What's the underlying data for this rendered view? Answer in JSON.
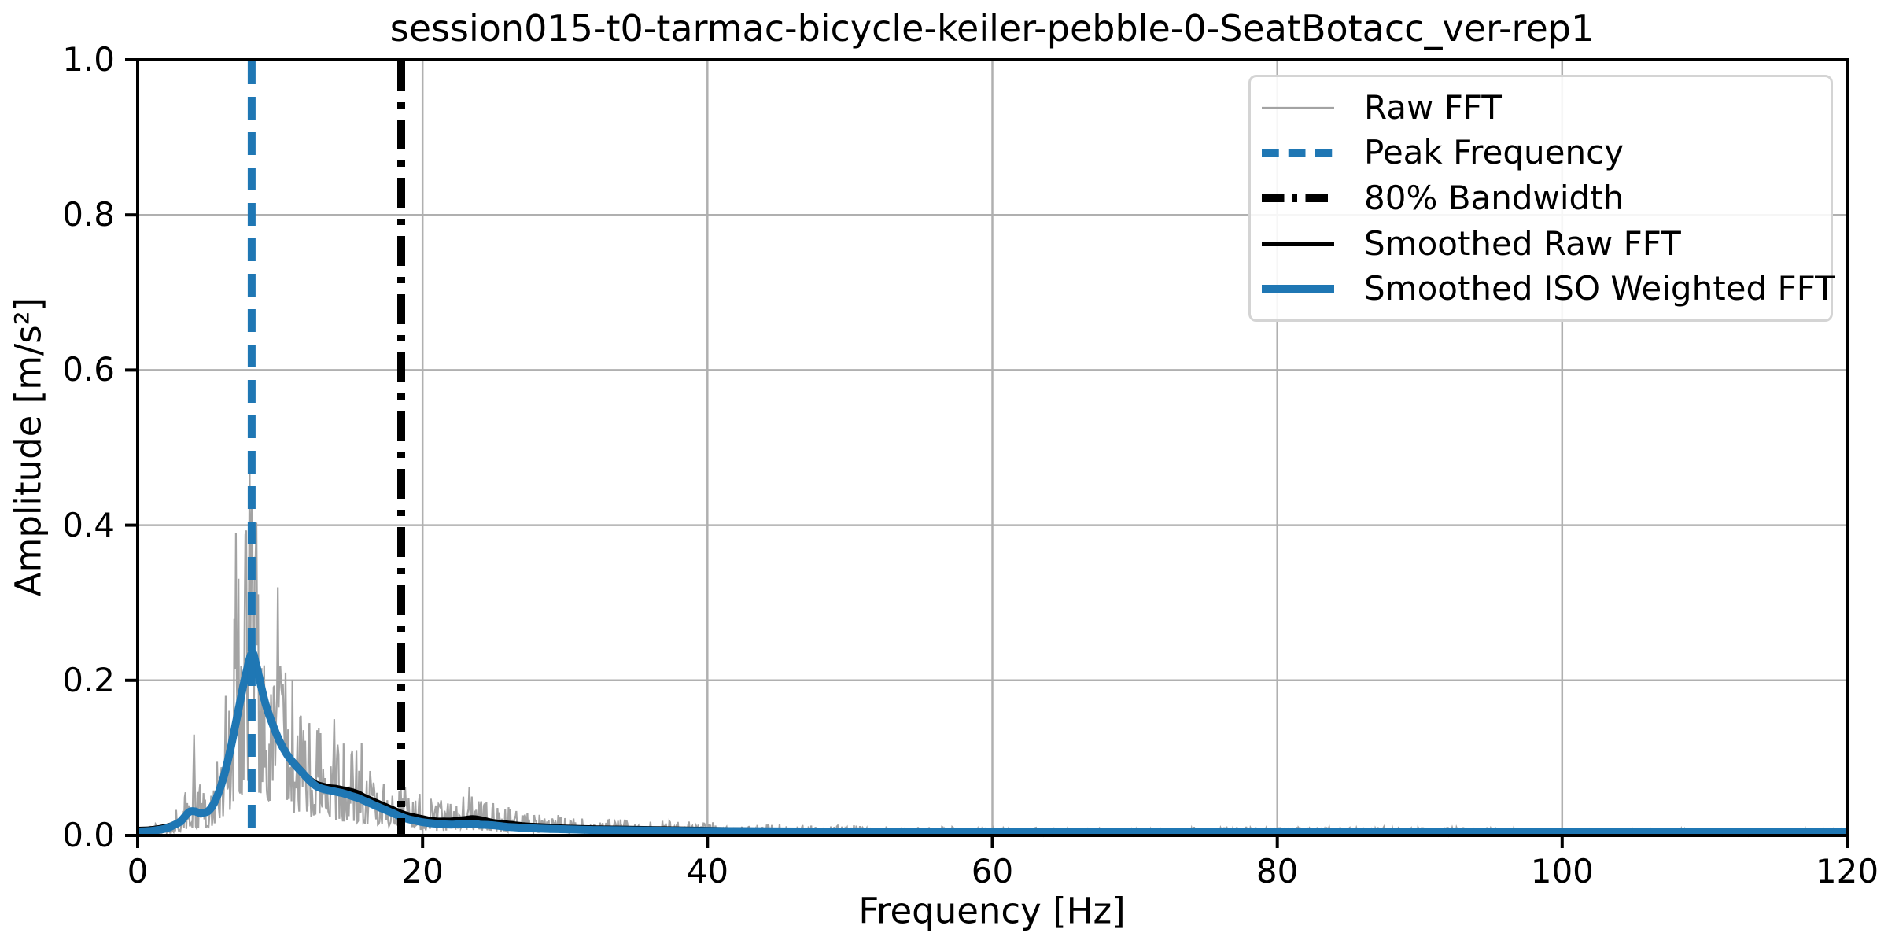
{
  "figure": {
    "background": "#ffffff"
  },
  "chart_data": {
    "type": "line",
    "title": "session015-t0-tarmac-bicycle-keiler-pebble-0-SeatBotacc_ver-rep1",
    "xlabel": "Frequency [Hz]",
    "ylabel": "Amplitude [m/s²]",
    "xlim": [
      0,
      120
    ],
    "ylim": [
      0,
      1.0
    ],
    "xticks": [
      0,
      20,
      40,
      60,
      80,
      100,
      120
    ],
    "yticks": [
      "0.0",
      "0.2",
      "0.4",
      "0.6",
      "0.8",
      "1.0"
    ],
    "grid": true,
    "legend_position": "upper right",
    "style": {
      "grid_color": "#b0b0b0",
      "spine_color": "#000000",
      "tick_color": "#000000",
      "text_color": "#000000",
      "legend_border_color": "#d4d4d4"
    },
    "annotations": {
      "peak_frequency_hz": 8.0,
      "bandwidth_80_hz": 18.5
    },
    "series": [
      {
        "name": "Raw FFT",
        "type": "noisy",
        "color": "#a3a3a3",
        "width": 2.2,
        "seed": 20150,
        "df": 0.06,
        "noise": {
          "floor": 0.0015,
          "min_mult": 0.3,
          "range_mult": 2.0,
          "power": 2.0
        },
        "base": [
          [
            0,
            0.005
          ],
          [
            1,
            0.006
          ],
          [
            2,
            0.009
          ],
          [
            2.5,
            0.012
          ],
          [
            3,
            0.018
          ],
          [
            3.6,
            0.03
          ],
          [
            4,
            0.032
          ],
          [
            4.5,
            0.028
          ],
          [
            5,
            0.032
          ],
          [
            5.5,
            0.045
          ],
          [
            6,
            0.07
          ],
          [
            6.5,
            0.1
          ],
          [
            7,
            0.15
          ],
          [
            7.5,
            0.19
          ],
          [
            8,
            0.215
          ],
          [
            8.5,
            0.185
          ],
          [
            9,
            0.16
          ],
          [
            9.5,
            0.14
          ],
          [
            10,
            0.12
          ],
          [
            10.5,
            0.105
          ],
          [
            11,
            0.095
          ],
          [
            11.5,
            0.085
          ],
          [
            12,
            0.075
          ],
          [
            12.5,
            0.068
          ],
          [
            13,
            0.065
          ],
          [
            13.5,
            0.063
          ],
          [
            14,
            0.062
          ],
          [
            14.5,
            0.06
          ],
          [
            15,
            0.057
          ],
          [
            15.5,
            0.054
          ],
          [
            16,
            0.05
          ],
          [
            16.5,
            0.046
          ],
          [
            17,
            0.042
          ],
          [
            17.5,
            0.038
          ],
          [
            18,
            0.034
          ],
          [
            18.5,
            0.03
          ],
          [
            19,
            0.027
          ],
          [
            19.5,
            0.025
          ],
          [
            20,
            0.023
          ],
          [
            21,
            0.02
          ],
          [
            22,
            0.02
          ],
          [
            22.5,
            0.021
          ],
          [
            23,
            0.023
          ],
          [
            23.5,
            0.024
          ],
          [
            24,
            0.022
          ],
          [
            24.5,
            0.02
          ],
          [
            25,
            0.018
          ],
          [
            26,
            0.016
          ],
          [
            27,
            0.014
          ],
          [
            28,
            0.013
          ],
          [
            29,
            0.012
          ],
          [
            30,
            0.011
          ],
          [
            32,
            0.01
          ],
          [
            34,
            0.009
          ],
          [
            36,
            0.0085
          ],
          [
            38,
            0.008
          ],
          [
            40,
            0.0075
          ],
          [
            44,
            0.0065
          ],
          [
            48,
            0.006
          ],
          [
            52,
            0.0055
          ],
          [
            56,
            0.005
          ],
          [
            60,
            0.0045
          ],
          [
            70,
            0.004
          ],
          [
            75,
            0.005
          ],
          [
            85,
            0.005
          ],
          [
            95,
            0.0045
          ],
          [
            100,
            0.004
          ],
          [
            110,
            0.0038
          ],
          [
            120,
            0.0035
          ]
        ],
        "spikes": [
          [
            3.95,
            0.13
          ],
          [
            6.2,
            0.18
          ],
          [
            6.9,
            0.39
          ],
          [
            7.85,
            0.49
          ],
          [
            8.05,
            0.44
          ],
          [
            8.3,
            0.36
          ],
          [
            9.85,
            0.32
          ],
          [
            10.4,
            0.21
          ],
          [
            13.8,
            0.15
          ],
          [
            23.3,
            0.062
          ]
        ]
      },
      {
        "name": "Peak Frequency",
        "type": "vline",
        "x": 8.0,
        "color": "#1f77b4",
        "width": 10,
        "dash": "29 16"
      },
      {
        "name": "80% Bandwidth",
        "type": "vline",
        "x": 18.5,
        "color": "#000000",
        "width": 10,
        "dash": "38 14 8 14"
      },
      {
        "name": "Smoothed Raw FFT",
        "type": "smooth",
        "color": "#000000",
        "width": 6,
        "points": [
          [
            0,
            0.008
          ],
          [
            1,
            0.009
          ],
          [
            2,
            0.012
          ],
          [
            2.5,
            0.015
          ],
          [
            3,
            0.02
          ],
          [
            3.6,
            0.031
          ],
          [
            4,
            0.032
          ],
          [
            4.4,
            0.03
          ],
          [
            5,
            0.032
          ],
          [
            5.5,
            0.045
          ],
          [
            6,
            0.07
          ],
          [
            6.5,
            0.105
          ],
          [
            7,
            0.15
          ],
          [
            7.5,
            0.195
          ],
          [
            8,
            0.225
          ],
          [
            8.3,
            0.215
          ],
          [
            8.7,
            0.185
          ],
          [
            9,
            0.165
          ],
          [
            9.5,
            0.14
          ],
          [
            10,
            0.12
          ],
          [
            10.5,
            0.105
          ],
          [
            11,
            0.095
          ],
          [
            11.5,
            0.085
          ],
          [
            12,
            0.075
          ],
          [
            12.5,
            0.068
          ],
          [
            13,
            0.065
          ],
          [
            13.5,
            0.063
          ],
          [
            14,
            0.062
          ],
          [
            14.5,
            0.06
          ],
          [
            15,
            0.058
          ],
          [
            15.5,
            0.055
          ],
          [
            16,
            0.05
          ],
          [
            16.5,
            0.046
          ],
          [
            17,
            0.042
          ],
          [
            17.5,
            0.038
          ],
          [
            18,
            0.034
          ],
          [
            18.5,
            0.03
          ],
          [
            19,
            0.027
          ],
          [
            19.5,
            0.025
          ],
          [
            20,
            0.023
          ],
          [
            20.5,
            0.021
          ],
          [
            21,
            0.02
          ],
          [
            21.5,
            0.02
          ],
          [
            22,
            0.02
          ],
          [
            22.5,
            0.021
          ],
          [
            23,
            0.022
          ],
          [
            23.5,
            0.023
          ],
          [
            24,
            0.022
          ],
          [
            24.5,
            0.02
          ],
          [
            25,
            0.018
          ],
          [
            26,
            0.016
          ],
          [
            27,
            0.014
          ],
          [
            28,
            0.013
          ],
          [
            29,
            0.012
          ],
          [
            30,
            0.011
          ],
          [
            32,
            0.01
          ],
          [
            34,
            0.0095
          ],
          [
            36,
            0.009
          ],
          [
            38,
            0.0085
          ],
          [
            40,
            0.008
          ],
          [
            42,
            0.0075
          ],
          [
            44,
            0.007
          ],
          [
            46,
            0.0068
          ],
          [
            48,
            0.0065
          ],
          [
            50,
            0.0063
          ],
          [
            55,
            0.006
          ],
          [
            60,
            0.006
          ],
          [
            70,
            0.0058
          ],
          [
            80,
            0.0056
          ],
          [
            90,
            0.0055
          ],
          [
            100,
            0.0055
          ],
          [
            110,
            0.0055
          ],
          [
            120,
            0.0055
          ]
        ]
      },
      {
        "name": "Smoothed ISO Weighted FFT",
        "type": "smooth",
        "color": "#1f77b4",
        "width": 10,
        "points": [
          [
            0,
            0.005
          ],
          [
            1,
            0.006
          ],
          [
            2,
            0.009
          ],
          [
            2.5,
            0.013
          ],
          [
            3,
            0.018
          ],
          [
            3.6,
            0.03
          ],
          [
            4,
            0.031
          ],
          [
            4.4,
            0.029
          ],
          [
            5,
            0.032
          ],
          [
            5.5,
            0.047
          ],
          [
            6,
            0.073
          ],
          [
            6.5,
            0.11
          ],
          [
            7,
            0.155
          ],
          [
            7.5,
            0.2
          ],
          [
            8,
            0.235
          ],
          [
            8.3,
            0.222
          ],
          [
            8.7,
            0.19
          ],
          [
            9,
            0.168
          ],
          [
            9.5,
            0.142
          ],
          [
            10,
            0.12
          ],
          [
            10.5,
            0.104
          ],
          [
            11,
            0.092
          ],
          [
            11.5,
            0.082
          ],
          [
            12,
            0.072
          ],
          [
            12.5,
            0.064
          ],
          [
            13,
            0.06
          ],
          [
            13.5,
            0.058
          ],
          [
            14,
            0.056
          ],
          [
            14.5,
            0.054
          ],
          [
            15,
            0.051
          ],
          [
            15.5,
            0.048
          ],
          [
            16,
            0.044
          ],
          [
            16.5,
            0.04
          ],
          [
            17,
            0.036
          ],
          [
            17.5,
            0.032
          ],
          [
            18,
            0.028
          ],
          [
            18.5,
            0.024
          ],
          [
            19,
            0.021
          ],
          [
            19.5,
            0.019
          ],
          [
            20,
            0.017
          ],
          [
            21,
            0.015
          ],
          [
            22,
            0.014
          ],
          [
            23,
            0.015
          ],
          [
            23.5,
            0.015
          ],
          [
            24,
            0.014
          ],
          [
            25,
            0.013
          ],
          [
            26,
            0.011
          ],
          [
            27,
            0.01
          ],
          [
            28,
            0.009
          ],
          [
            30,
            0.008
          ],
          [
            32,
            0.007
          ],
          [
            34,
            0.0067
          ],
          [
            36,
            0.0063
          ],
          [
            38,
            0.006
          ],
          [
            40,
            0.0057
          ],
          [
            44,
            0.0053
          ],
          [
            48,
            0.005
          ],
          [
            55,
            0.0047
          ],
          [
            60,
            0.0045
          ],
          [
            70,
            0.0043
          ],
          [
            80,
            0.0042
          ],
          [
            90,
            0.0042
          ],
          [
            100,
            0.0042
          ],
          [
            110,
            0.0042
          ],
          [
            120,
            0.0042
          ]
        ]
      }
    ]
  }
}
